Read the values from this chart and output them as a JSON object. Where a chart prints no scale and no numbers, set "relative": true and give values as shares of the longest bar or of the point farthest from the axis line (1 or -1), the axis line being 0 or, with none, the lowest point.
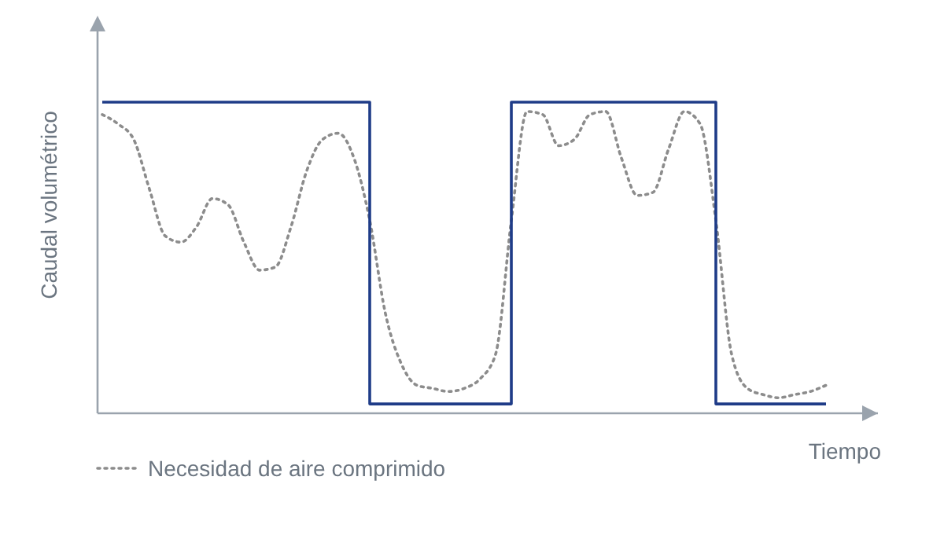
{
  "chart_data": {
    "type": "line",
    "relative": true,
    "xlabel": "Tiempo",
    "ylabel": "Caudal volumétrico",
    "legend": "bottom",
    "categories": [
      null,
      null,
      null,
      null,
      null,
      null,
      null,
      null,
      null,
      null,
      null,
      null,
      null,
      null,
      null,
      null,
      null,
      null,
      null,
      null,
      null,
      null,
      null,
      null,
      null,
      null,
      null,
      null,
      null,
      null,
      null,
      null,
      null,
      null,
      null,
      null,
      null,
      null,
      null,
      null,
      null,
      null,
      null,
      null,
      null,
      null,
      null
    ],
    "series": [
      {
        "name": "Necesidad de aire comprimido",
        "color": "#8c8c8c",
        "line_style": "dotted",
        "values": [
          0.96,
          0.93,
          0.88,
          0.72,
          0.57,
          0.55,
          0.6,
          0.69,
          0.67,
          0.55,
          0.46,
          0.47,
          0.6,
          0.78,
          0.88,
          0.9,
          0.82,
          0.62,
          0.32,
          0.16,
          0.09,
          0.08,
          0.07,
          0.08,
          0.11,
          0.19,
          0.62,
          0.97,
          0.96,
          0.86,
          0.88,
          0.96,
          0.97,
          0.82,
          0.7,
          0.71,
          0.85,
          0.97,
          0.93,
          0.62,
          0.19,
          0.08,
          0.06,
          0.05,
          0.06,
          0.07,
          0.09
        ]
      },
      {
        "type": "step",
        "color": "#1f3c88",
        "line_style": "solid",
        "values": [
          1,
          1,
          1,
          1,
          1,
          1,
          1,
          1,
          1,
          1,
          1,
          1,
          1,
          1,
          1,
          1,
          1,
          0.03,
          0.03,
          0.03,
          0.03,
          0.03,
          0.03,
          0.03,
          0.03,
          0.03,
          1,
          1,
          1,
          1,
          1,
          1,
          1,
          1,
          1,
          1,
          1,
          1,
          1,
          0.03,
          0.03,
          0.03,
          0.03,
          0.03,
          0.03,
          0.03,
          0.03
        ]
      }
    ]
  }
}
